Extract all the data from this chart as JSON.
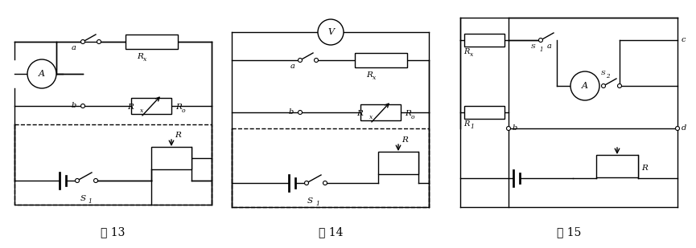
{
  "fig_labels": [
    "图 13",
    "图 14",
    "图 15"
  ],
  "bg_color": "#ffffff",
  "line_color": "#000000",
  "figsize": [
    8.65,
    3.09
  ],
  "dpi": 100
}
